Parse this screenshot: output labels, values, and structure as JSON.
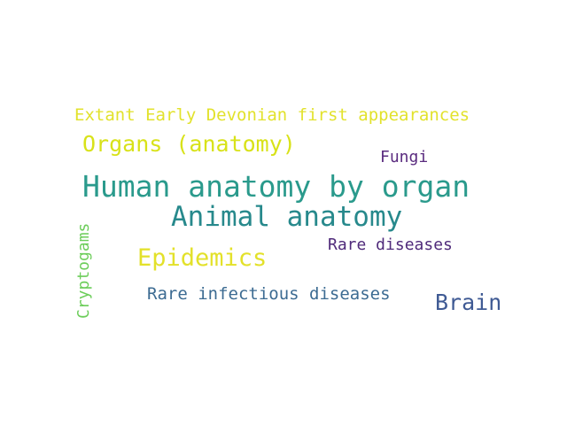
{
  "words": [
    {
      "text": "Extant Early Devonian first appearances",
      "color": "#e2e22c"
    },
    {
      "text": "Organs (anatomy)",
      "color": "#d8e219"
    },
    {
      "text": "Fungi",
      "color": "#5a2b7f"
    },
    {
      "text": "Human anatomy by organ",
      "color": "#2a9a8c"
    },
    {
      "text": "Animal anatomy",
      "color": "#27898c"
    },
    {
      "text": "Rare diseases",
      "color": "#4f2a7a"
    },
    {
      "text": "Epidemics",
      "color": "#e3e12a"
    },
    {
      "text": "Rare infectious diseases",
      "color": "#3c6b92"
    },
    {
      "text": "Brain",
      "color": "#3f5a94"
    },
    {
      "text": "Cryptogams",
      "color": "#6ccd5a"
    }
  ]
}
